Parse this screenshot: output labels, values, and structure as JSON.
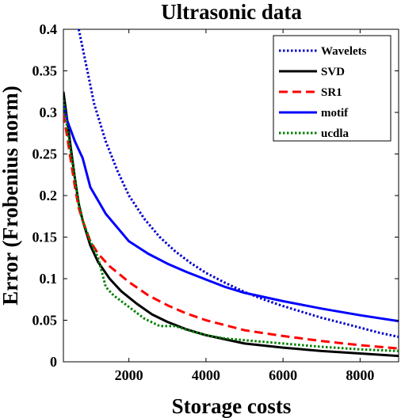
{
  "chart_data": {
    "type": "line",
    "title": "Ultrasonic data",
    "xlabel": "Storage costs",
    "ylabel": "Error (Frobenius norm)",
    "xlim": [
      300,
      9000
    ],
    "ylim": [
      0,
      0.4
    ],
    "xticks": [
      2000,
      4000,
      6000,
      8000
    ],
    "xtick_labels": [
      "2000",
      "4000",
      "6000",
      "8000"
    ],
    "yticks": [
      0,
      0.05,
      0.1,
      0.15,
      0.2,
      0.25,
      0.3,
      0.35,
      0.4
    ],
    "ytick_labels": [
      "0",
      "0.05",
      "0.1",
      "0.15",
      "0.2",
      "0.25",
      "0.3",
      "0.35",
      "0.4"
    ],
    "grid": false,
    "legend_position": "top-right",
    "series": [
      {
        "name": "Wavelets",
        "color": "#0000cc",
        "style": "dotted",
        "x": [
          700,
          900,
          1100,
          1400,
          1700,
          2000,
          2400,
          2800,
          3200,
          3600,
          4000,
          4500,
          5000,
          5500,
          6000,
          6500,
          7000,
          7500,
          8000,
          8500,
          9000
        ],
        "y": [
          0.4,
          0.355,
          0.31,
          0.265,
          0.23,
          0.2,
          0.172,
          0.15,
          0.133,
          0.119,
          0.107,
          0.095,
          0.084,
          0.075,
          0.067,
          0.06,
          0.053,
          0.047,
          0.041,
          0.035,
          0.03
        ]
      },
      {
        "name": "SVD",
        "color": "#000000",
        "style": "solid",
        "x": [
          300,
          400,
          500,
          600,
          700,
          800,
          1000,
          1200,
          1500,
          1800,
          2200,
          2600,
          3000,
          3500,
          4000,
          4500,
          5000,
          6000,
          7000,
          8000,
          9000
        ],
        "y": [
          0.325,
          0.29,
          0.255,
          0.22,
          0.19,
          0.17,
          0.14,
          0.12,
          0.1,
          0.085,
          0.07,
          0.057,
          0.048,
          0.039,
          0.032,
          0.027,
          0.022,
          0.017,
          0.013,
          0.01,
          0.007
        ]
      },
      {
        "name": "SR1",
        "color": "#ff0000",
        "style": "dashed",
        "x": [
          300,
          400,
          500,
          600,
          700,
          800,
          1000,
          1200,
          1500,
          2000,
          2500,
          3000,
          3500,
          4000,
          4500,
          5000,
          6000,
          7000,
          8000,
          9000
        ],
        "y": [
          0.298,
          0.27,
          0.24,
          0.21,
          0.185,
          0.17,
          0.145,
          0.13,
          0.115,
          0.096,
          0.08,
          0.068,
          0.058,
          0.05,
          0.044,
          0.038,
          0.031,
          0.025,
          0.02,
          0.016
        ]
      },
      {
        "name": "motif",
        "color": "#0000ff",
        "style": "solid",
        "x": [
          300,
          400,
          600,
          800,
          1000,
          1400,
          2000,
          2500,
          3000,
          3500,
          4000,
          4500,
          5000,
          6000,
          7000,
          8000,
          9000
        ],
        "y": [
          0.31,
          0.29,
          0.265,
          0.245,
          0.21,
          0.178,
          0.145,
          0.13,
          0.118,
          0.108,
          0.099,
          0.09,
          0.083,
          0.073,
          0.064,
          0.056,
          0.049
        ]
      },
      {
        "name": "ucdla",
        "color": "#008000",
        "style": "dotted",
        "x": [
          300,
          400,
          500,
          600,
          700,
          800,
          1000,
          1200,
          1400,
          1600,
          2000,
          2400,
          2800,
          3200,
          3600,
          4000,
          4500,
          5000,
          6000,
          7000,
          8000,
          9000
        ],
        "y": [
          0.315,
          0.28,
          0.25,
          0.22,
          0.19,
          0.17,
          0.145,
          0.125,
          0.09,
          0.08,
          0.066,
          0.052,
          0.043,
          0.043,
          0.037,
          0.032,
          0.028,
          0.026,
          0.022,
          0.018,
          0.015,
          0.013
        ]
      }
    ]
  }
}
